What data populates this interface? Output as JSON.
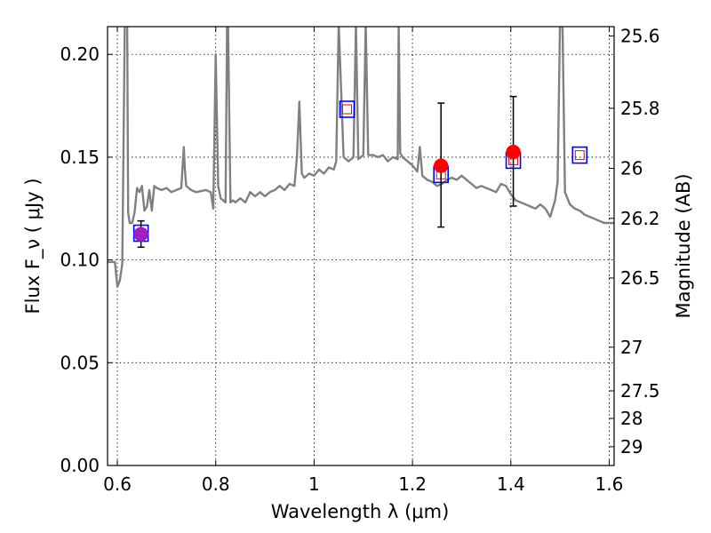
{
  "chart_data": {
    "type": "scatter",
    "xlabel": "Wavelength  λ (μm)",
    "ylabel": "Flux  F_ν  ( μJy )",
    "y2label": "Magnitude (AB)",
    "xlim": [
      0.58,
      1.61
    ],
    "ylim": [
      0.0,
      0.2135
    ],
    "x_ticks": [
      {
        "value": 0.6,
        "label": "0.6"
      },
      {
        "value": 0.8,
        "label": "0.8"
      },
      {
        "value": 1.0,
        "label": "1"
      },
      {
        "value": 1.2,
        "label": "1.2"
      },
      {
        "value": 1.4,
        "label": "1.4"
      },
      {
        "value": 1.6,
        "label": "1.6"
      }
    ],
    "y_ticks": [
      {
        "value": 0.0,
        "label": "0.00"
      },
      {
        "value": 0.05,
        "label": "0.05"
      },
      {
        "value": 0.1,
        "label": "0.10"
      },
      {
        "value": 0.15,
        "label": "0.15"
      },
      {
        "value": 0.2,
        "label": "0.20"
      }
    ],
    "mag_ticks": [
      {
        "value": 25.6,
        "label": "25.6"
      },
      {
        "value": 25.8,
        "label": "25.8"
      },
      {
        "value": 26.0,
        "label": "26"
      },
      {
        "value": 26.2,
        "label": "26.2"
      },
      {
        "value": 26.5,
        "label": "26.5"
      },
      {
        "value": 27.0,
        "label": "27"
      },
      {
        "value": 27.5,
        "label": "27.5"
      },
      {
        "value": 28.0,
        "label": "28"
      },
      {
        "value": 29.0,
        "label": "29"
      }
    ],
    "grid": true,
    "colors": {
      "model": "#808080",
      "observed": "#ff0000",
      "observed_first": "#a020c0",
      "model_band_box": "#0000ff",
      "model_band_inner": "#ff0000",
      "errorbar": "#000000"
    },
    "series": [
      {
        "type": "line",
        "x": [
          0.58,
          0.595,
          0.6,
          0.605,
          0.61,
          0.615,
          0.62,
          0.622,
          0.625,
          0.63,
          0.635,
          0.64,
          0.645,
          0.65,
          0.655,
          0.66,
          0.665,
          0.67,
          0.675,
          0.68,
          0.69,
          0.7,
          0.71,
          0.72,
          0.73,
          0.735,
          0.737,
          0.74,
          0.75,
          0.76,
          0.78,
          0.79,
          0.795,
          0.8,
          0.805,
          0.81,
          0.82,
          0.823,
          0.825,
          0.83,
          0.835,
          0.84,
          0.85,
          0.86,
          0.87,
          0.88,
          0.89,
          0.9,
          0.91,
          0.92,
          0.93,
          0.94,
          0.95,
          0.96,
          0.965,
          0.97,
          0.975,
          0.98,
          0.99,
          1.0,
          1.01,
          1.02,
          1.03,
          1.04,
          1.045,
          1.05,
          1.06,
          1.07,
          1.08,
          1.085,
          1.09,
          1.1,
          1.105,
          1.11,
          1.12,
          1.13,
          1.14,
          1.15,
          1.16,
          1.17,
          1.172,
          1.175,
          1.18,
          1.19,
          1.2,
          1.21,
          1.215,
          1.22,
          1.23,
          1.24,
          1.25,
          1.26,
          1.27,
          1.28,
          1.29,
          1.3,
          1.31,
          1.32,
          1.33,
          1.34,
          1.35,
          1.36,
          1.37,
          1.38,
          1.39,
          1.4,
          1.41,
          1.42,
          1.43,
          1.44,
          1.45,
          1.46,
          1.47,
          1.48,
          1.49,
          1.495,
          1.5,
          1.505,
          1.51,
          1.52,
          1.53,
          1.54,
          1.55,
          1.56,
          1.57,
          1.58,
          1.59,
          1.6,
          1.61
        ],
        "y": [
          0.099,
          0.099,
          0.087,
          0.09,
          0.098,
          0.215,
          0.215,
          0.123,
          0.118,
          0.118,
          0.123,
          0.135,
          0.133,
          0.136,
          0.124,
          0.126,
          0.134,
          0.124,
          0.136,
          0.135,
          0.134,
          0.135,
          0.133,
          0.134,
          0.135,
          0.155,
          0.145,
          0.136,
          0.134,
          0.133,
          0.134,
          0.133,
          0.125,
          0.2,
          0.136,
          0.13,
          0.128,
          0.215,
          0.215,
          0.128,
          0.129,
          0.128,
          0.13,
          0.128,
          0.133,
          0.131,
          0.133,
          0.131,
          0.133,
          0.134,
          0.136,
          0.134,
          0.137,
          0.136,
          0.15,
          0.177,
          0.142,
          0.14,
          0.142,
          0.141,
          0.144,
          0.142,
          0.145,
          0.144,
          0.148,
          0.215,
          0.15,
          0.148,
          0.15,
          0.215,
          0.149,
          0.151,
          0.215,
          0.151,
          0.151,
          0.15,
          0.151,
          0.148,
          0.15,
          0.149,
          0.215,
          0.152,
          0.15,
          0.148,
          0.146,
          0.143,
          0.155,
          0.141,
          0.139,
          0.138,
          0.136,
          0.137,
          0.139,
          0.14,
          0.139,
          0.141,
          0.139,
          0.137,
          0.135,
          0.136,
          0.135,
          0.134,
          0.133,
          0.137,
          0.136,
          0.132,
          0.129,
          0.128,
          0.127,
          0.126,
          0.125,
          0.127,
          0.125,
          0.121,
          0.129,
          0.138,
          0.215,
          0.215,
          0.133,
          0.127,
          0.125,
          0.124,
          0.122,
          0.121,
          0.12,
          0.119,
          0.118,
          0.118,
          0.118
        ]
      },
      {
        "type": "model_band",
        "points": [
          {
            "x": 0.648,
            "y": 0.113
          },
          {
            "x": 1.067,
            "y": 0.1733
          },
          {
            "x": 1.258,
            "y": 0.1416
          },
          {
            "x": 1.405,
            "y": 0.1485
          },
          {
            "x": 1.54,
            "y": 0.151
          }
        ]
      },
      {
        "type": "observed",
        "points": [
          {
            "x": 0.648,
            "y": 0.1125,
            "yerr_low": 0.1062,
            "yerr_high": 0.119
          },
          {
            "x": 1.258,
            "y": 0.1458,
            "yerr_low": 0.116,
            "yerr_high": 0.1763
          },
          {
            "x": 1.405,
            "y": 0.1525,
            "yerr_low": 0.1262,
            "yerr_high": 0.1795
          }
        ]
      }
    ]
  }
}
